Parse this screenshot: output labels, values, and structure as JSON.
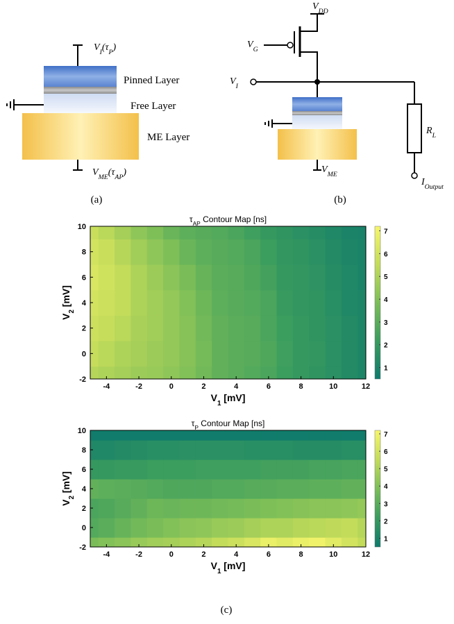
{
  "figure_a": {
    "top_terminal": [
      {
        "text": "V"
      },
      {
        "sub": "I"
      },
      {
        "text": "(τ"
      },
      {
        "sub": "P"
      },
      {
        "text": ")"
      }
    ],
    "pinned": "Pinned Layer",
    "free": "Free Layer",
    "me": "ME Layer",
    "bottom_terminal": [
      {
        "text": "V"
      },
      {
        "sub": "ME"
      },
      {
        "text": "(τ"
      },
      {
        "sub": "AP"
      },
      {
        "text": ")"
      }
    ],
    "caption": "(a)"
  },
  "figure_b": {
    "vdd": [
      {
        "text": "V"
      },
      {
        "sub": "DD"
      }
    ],
    "vg": [
      {
        "text": "V"
      },
      {
        "sub": "G"
      }
    ],
    "vi": [
      {
        "text": "V"
      },
      {
        "sub": "I"
      }
    ],
    "vme": [
      {
        "text": "V"
      },
      {
        "sub": "ME"
      }
    ],
    "rl": [
      {
        "text": "R"
      },
      {
        "sub": "L"
      }
    ],
    "iout": [
      {
        "text": "I"
      },
      {
        "sub": "Output"
      }
    ],
    "caption": "(b)"
  },
  "caption_c": "(c)",
  "chart_data": [
    {
      "type": "heatmap",
      "title": [
        {
          "text": "τ"
        },
        {
          "sub": "AP"
        },
        {
          "text": " Contour Map [ns]"
        }
      ],
      "x_label": [
        {
          "text": "V"
        },
        {
          "sub": "1"
        },
        {
          "text": " [mV]"
        }
      ],
      "y_label": [
        {
          "text": "V"
        },
        {
          "sub": "2"
        },
        {
          "text": " [mV]"
        }
      ],
      "x": [
        -5,
        -4,
        -3,
        -2,
        -1,
        0,
        1,
        2,
        3,
        4,
        5,
        6,
        7,
        8,
        9,
        10,
        11,
        12
      ],
      "y": [
        -2,
        0,
        2,
        4,
        6,
        8,
        10
      ],
      "z": [
        [
          5.2,
          5.0,
          4.8,
          4.6,
          4.5,
          4.3,
          4.0,
          3.6,
          3.2,
          3.0,
          2.8,
          2.6,
          2.2,
          2.0,
          1.8,
          1.6,
          1.3,
          1.1
        ],
        [
          5.6,
          5.3,
          5.0,
          4.8,
          4.6,
          4.4,
          4.1,
          3.7,
          3.2,
          3.0,
          2.9,
          2.7,
          2.3,
          2.0,
          1.9,
          1.6,
          1.3,
          1.1
        ],
        [
          5.8,
          5.6,
          5.3,
          4.9,
          4.7,
          4.4,
          4.1,
          3.6,
          3.2,
          3.0,
          2.9,
          2.6,
          2.2,
          2.0,
          1.8,
          1.6,
          1.3,
          1.1
        ],
        [
          6.0,
          5.8,
          5.5,
          5.0,
          4.7,
          4.4,
          4.0,
          3.5,
          3.1,
          2.9,
          2.8,
          2.6,
          2.1,
          1.9,
          1.8,
          1.5,
          1.2,
          1.1
        ],
        [
          6.2,
          5.9,
          5.5,
          5.0,
          4.6,
          4.2,
          3.8,
          3.3,
          3.0,
          2.9,
          2.7,
          2.4,
          2.0,
          1.9,
          1.7,
          1.4,
          1.2,
          1.0
        ],
        [
          6.0,
          5.7,
          5.2,
          4.7,
          4.3,
          3.9,
          3.4,
          3.1,
          2.9,
          2.8,
          2.6,
          2.2,
          1.9,
          1.8,
          1.6,
          1.3,
          1.1,
          1.0
        ],
        [
          5.7,
          5.3,
          4.8,
          4.3,
          3.9,
          3.4,
          3.1,
          2.9,
          2.8,
          2.6,
          2.3,
          2.0,
          1.8,
          1.6,
          1.4,
          1.2,
          1.0,
          0.9
        ]
      ],
      "xlim": [
        -5,
        12
      ],
      "xticks": [
        -4,
        -2,
        0,
        2,
        4,
        6,
        8,
        10,
        12
      ],
      "ylim": [
        -2,
        10
      ],
      "yticks": [
        -2,
        0,
        2,
        4,
        6,
        8,
        10
      ],
      "clim": [
        0.5,
        7.2
      ],
      "cticks": [
        1,
        2,
        3,
        4,
        5,
        6,
        7
      ],
      "colormap": [
        "#0e7a6c",
        "#3a9c5e",
        "#7cbe58",
        "#c4dc5a",
        "#f6f66c"
      ]
    },
    {
      "type": "heatmap",
      "title": [
        {
          "text": "τ"
        },
        {
          "sub": "P"
        },
        {
          "text": " Contour Map [ns]"
        }
      ],
      "x_label": [
        {
          "text": "V"
        },
        {
          "sub": "1"
        },
        {
          "text": " [mV]"
        }
      ],
      "y_label": [
        {
          "text": "V"
        },
        {
          "sub": "2"
        },
        {
          "text": " [mV]"
        }
      ],
      "x": [
        -5,
        -4,
        -3,
        -2,
        -1,
        0,
        1,
        2,
        3,
        4,
        5,
        6,
        7,
        8,
        9,
        10,
        11,
        12
      ],
      "y": [
        -2,
        0,
        2,
        4,
        6,
        8,
        10
      ],
      "z": [
        [
          3.8,
          4.0,
          4.2,
          4.5,
          4.7,
          4.8,
          5.0,
          5.2,
          5.5,
          5.8,
          6.2,
          6.8,
          6.5,
          6.8,
          7.0,
          6.5,
          6.0,
          5.5
        ],
        [
          2.8,
          3.0,
          3.3,
          3.6,
          3.8,
          4.0,
          4.2,
          4.3,
          4.5,
          4.6,
          4.8,
          5.0,
          5.0,
          5.2,
          5.3,
          5.4,
          5.5,
          5.2
        ],
        [
          2.6,
          2.7,
          2.9,
          3.2,
          3.5,
          3.4,
          3.5,
          3.5,
          3.6,
          3.7,
          3.8,
          3.9,
          4.0,
          4.1,
          4.2,
          4.2,
          4.3,
          4.4
        ],
        [
          3.2,
          3.1,
          3.0,
          2.9,
          2.8,
          2.7,
          2.7,
          2.7,
          2.8,
          2.8,
          2.9,
          2.9,
          3.0,
          3.0,
          3.1,
          3.1,
          3.2,
          3.2
        ],
        [
          2.0,
          2.0,
          2.1,
          2.1,
          2.2,
          2.2,
          2.2,
          2.3,
          2.3,
          2.3,
          2.3,
          2.4,
          2.4,
          2.4,
          2.5,
          2.5,
          2.6,
          2.6
        ],
        [
          1.2,
          1.2,
          1.3,
          1.4,
          1.5,
          1.5,
          1.6,
          1.6,
          1.6,
          1.6,
          1.5,
          1.5,
          1.5,
          1.4,
          1.4,
          1.4,
          1.5,
          1.5
        ],
        [
          0.6,
          0.6,
          0.6,
          0.6,
          0.6,
          0.6,
          0.6,
          0.6,
          0.6,
          0.6,
          0.6,
          0.6,
          0.6,
          0.6,
          0.6,
          0.6,
          0.6,
          0.6
        ]
      ],
      "xlim": [
        -5,
        12
      ],
      "xticks": [
        -4,
        -2,
        0,
        2,
        4,
        6,
        8,
        10,
        12
      ],
      "ylim": [
        -2,
        10
      ],
      "yticks": [
        -2,
        0,
        2,
        4,
        6,
        8,
        10
      ],
      "clim": [
        0.5,
        7.2
      ],
      "cticks": [
        1,
        2,
        3,
        4,
        5,
        6,
        7
      ],
      "colormap": [
        "#0e7a6c",
        "#3a9c5e",
        "#7cbe58",
        "#c4dc5a",
        "#f6f66c"
      ]
    }
  ]
}
